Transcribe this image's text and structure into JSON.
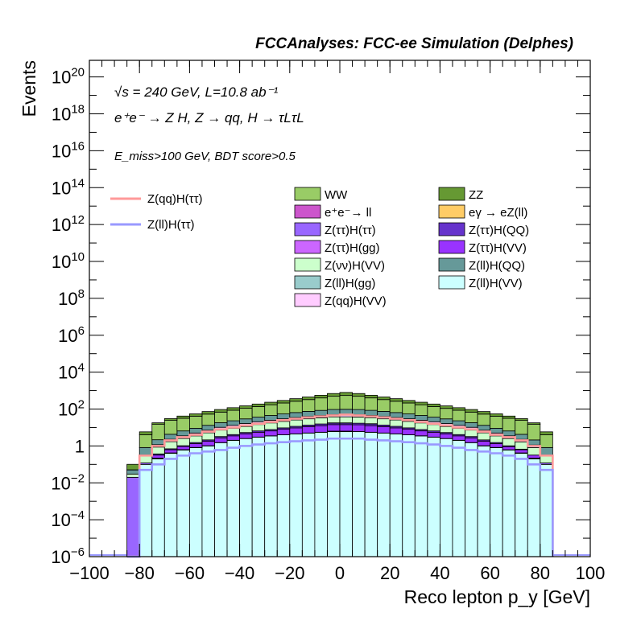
{
  "chart_data": {
    "type": "bar",
    "title": "FCCAnalyses: FCC-ee Simulation (Delphes)",
    "xlabel": "Reco lepton p_y [GeV]",
    "ylabel": "Events",
    "xlim": [
      -100,
      100
    ],
    "ylim_log10": [
      -6,
      20.9
    ],
    "yscale": "log",
    "grid": false,
    "x_ticks": [
      "−100",
      "−80",
      "−60",
      "−40",
      "−20",
      "0",
      "20",
      "40",
      "60",
      "80",
      "100"
    ],
    "annotations": [
      "√s = 240 GeV, L=10.8 ab⁻¹",
      "e⁺e⁻ → Z H, Z → qq, H → τLτL",
      "E_miss>100 GeV, BDT score>0.5"
    ],
    "bin_edges": [
      -85,
      -80,
      -75,
      -70,
      -65,
      -60,
      -55,
      -50,
      -45,
      -40,
      -35,
      -30,
      -25,
      -20,
      -15,
      -10,
      -5,
      0,
      5,
      10,
      15,
      20,
      25,
      30,
      35,
      40,
      45,
      50,
      55,
      60,
      65,
      70,
      75,
      80,
      85
    ],
    "stack_order": [
      "Z(ll)H(VV)",
      "Z(ll)H(gg)",
      "eγ → eZ(ll)",
      "Z(ττ)H(gg)",
      "Z(ττ)H(ττ)",
      "Z(ττ)H(VV)",
      "Z(ττ)H(QQ)",
      "e⁺e⁻→ ll",
      "Z(νν)H(VV)",
      "Z(qq)H(VV)",
      "Z(ll)H(QQ)",
      "WW",
      "ZZ"
    ],
    "series": [
      {
        "name": "WW",
        "color": "#99cc66",
        "values": [
          0.001,
          3.2,
          13,
          20,
          25,
          32,
          40,
          50,
          63,
          80,
          100,
          126,
          158,
          200,
          251,
          316,
          398,
          447,
          398,
          316,
          251,
          200,
          158,
          126,
          100,
          79,
          63,
          50,
          40,
          32,
          25,
          20,
          13,
          3.2
        ]
      },
      {
        "name": "ZZ",
        "color": "#669933",
        "values": [
          0.05,
          1.8,
          2.8,
          6,
          10,
          14,
          20,
          26,
          32,
          40,
          50,
          63,
          79,
          100,
          126,
          158,
          200,
          250,
          200,
          158,
          126,
          100,
          79,
          63,
          50,
          40,
          32,
          26,
          20,
          14,
          10,
          6,
          2.8,
          1.8
        ]
      },
      {
        "name": "e⁺e⁻→ ll",
        "color": "#cc55cc",
        "values": [
          0,
          0,
          0,
          0,
          0,
          0,
          0,
          0,
          0,
          0,
          0,
          0,
          0,
          0,
          0,
          0,
          0.5,
          0.5,
          0,
          0.5,
          0,
          0,
          0,
          0,
          0,
          0,
          0,
          0,
          0,
          0,
          0,
          0,
          0,
          0
        ]
      },
      {
        "name": "eγ → eZ(ll)",
        "color": "#ffcc66",
        "values": [
          0,
          0,
          0,
          0,
          0,
          0,
          0,
          0,
          0,
          0.005,
          0,
          0,
          0,
          0,
          0,
          0,
          0.3,
          0.3,
          0,
          0,
          0,
          0,
          0,
          0.005,
          0,
          0,
          0,
          0,
          0,
          0,
          0,
          0,
          0,
          0
        ]
      },
      {
        "name": "Z(ττ)H(ττ)",
        "color": "#9966ff",
        "values": [
          0.02,
          0.02,
          0.02,
          0.02,
          0.03,
          0.03,
          0.03,
          0.03,
          0.03,
          0.03,
          0.03,
          0.03,
          0.03,
          0.03,
          0.03,
          0.03,
          0.03,
          0.03,
          0.03,
          0.03,
          0.03,
          0.03,
          0.03,
          0.03,
          0.03,
          0.03,
          0.03,
          0.03,
          0.03,
          0.03,
          0.02,
          0.02,
          0.02,
          0.02
        ]
      },
      {
        "name": "Z(ττ)H(QQ)",
        "color": "#6633cc",
        "values": [
          0,
          0,
          0.05,
          0.08,
          0.1,
          0.2,
          0.3,
          0.5,
          0.6,
          0.8,
          1,
          1.2,
          1.5,
          2,
          2.5,
          3,
          3,
          3,
          3,
          3,
          2.5,
          2,
          1.5,
          1.2,
          1,
          0.8,
          0.6,
          0.5,
          0.3,
          0.2,
          0.1,
          0.05,
          0,
          0
        ]
      },
      {
        "name": "Z(ττ)H(gg)",
        "color": "#cc66ff",
        "values": [
          0,
          0,
          0,
          0,
          0,
          0,
          0,
          0.003,
          0.003,
          0.005,
          0.01,
          0.01,
          0.01,
          0.01,
          0.01,
          0.01,
          0.01,
          0.01,
          0.01,
          0.01,
          0.01,
          0.01,
          0.01,
          0.01,
          0.005,
          0.003,
          0.003,
          0,
          0,
          0,
          0,
          0,
          0,
          0
        ]
      },
      {
        "name": "Z(ττ)H(VV)",
        "color": "#9933ff",
        "values": [
          0,
          0,
          0.1,
          0.2,
          0.3,
          0.5,
          0.8,
          1.2,
          1.5,
          2,
          2.5,
          3,
          4,
          5,
          6,
          7,
          8,
          8,
          8,
          7,
          6,
          5,
          4,
          3,
          2.5,
          2,
          1.5,
          1.2,
          0.8,
          0.5,
          0.3,
          0.2,
          0.1,
          0
        ]
      },
      {
        "name": "Z(νν)H(VV)",
        "color": "#ccffcc",
        "values": [
          0.01,
          0.2,
          0.5,
          1,
          1.5,
          2,
          3,
          4,
          5,
          6,
          8,
          10,
          12,
          14,
          16,
          18,
          20,
          20,
          20,
          18,
          16,
          14,
          12,
          10,
          8,
          6,
          5,
          4,
          3,
          2,
          1.5,
          1,
          0.5,
          0.2
        ]
      },
      {
        "name": "Z(ll)H(QQ)",
        "color": "#669999",
        "values": [
          0.02,
          0.5,
          1,
          2,
          3,
          4,
          6,
          8,
          10,
          13,
          16,
          20,
          25,
          30,
          35,
          40,
          45,
          47,
          45,
          40,
          35,
          30,
          25,
          20,
          16,
          13,
          10,
          8,
          6,
          4,
          3,
          2,
          1,
          0.5
        ]
      },
      {
        "name": "Z(ll)H(gg)",
        "color": "#99cccc",
        "values": [
          0,
          0,
          0,
          0,
          0,
          0,
          0,
          0,
          0,
          0,
          0,
          0.005,
          0.005,
          0.01,
          0.01,
          0.01,
          0.01,
          0.01,
          0.01,
          0.01,
          0.01,
          0.01,
          0.005,
          0.005,
          0,
          0,
          0,
          0,
          0,
          0,
          0,
          0,
          0,
          0
        ]
      },
      {
        "name": "Z(ll)H(VV)",
        "color": "#ccffff",
        "values": [
          0,
          0.1,
          0.2,
          0.4,
          0.6,
          0.8,
          1,
          1.5,
          2,
          2.5,
          3,
          3.5,
          4,
          4.5,
          5,
          5.5,
          6,
          6,
          6,
          5.5,
          5,
          4.5,
          4,
          3.5,
          3,
          2.5,
          2,
          1.5,
          1,
          0.8,
          0.6,
          0.4,
          0.2,
          0.1
        ]
      },
      {
        "name": "Z(qq)H(VV)",
        "color": "#ffccff",
        "values": [
          1e-06,
          1e-06,
          0.3,
          0.6,
          1,
          1.5,
          2,
          3,
          4,
          5,
          6,
          7,
          8,
          9,
          10,
          11,
          12,
          12,
          12,
          11,
          10,
          9,
          8,
          7,
          6,
          5,
          4,
          3,
          2,
          1.5,
          1,
          0.6,
          0.3,
          1e-06
        ]
      }
    ],
    "signal_lines": [
      {
        "name": "Z(qq)H(ττ)",
        "color": "#ff9999",
        "values": [
          1e-07,
          0.3,
          1,
          2,
          3,
          4,
          6,
          8,
          10,
          13,
          16,
          20,
          25,
          30,
          35,
          40,
          45,
          50,
          45,
          40,
          35,
          30,
          25,
          20,
          16,
          13,
          10,
          8,
          6,
          4,
          3,
          2,
          1,
          0.3
        ]
      },
      {
        "name": "Z(ll)H(ττ)",
        "color": "#9999ff",
        "values": [
          1e-07,
          0.05,
          0.1,
          0.2,
          0.3,
          0.4,
          0.5,
          0.6,
          0.8,
          1,
          1.2,
          1.4,
          1.6,
          1.8,
          2,
          2.2,
          2.5,
          2.5,
          2.5,
          2.2,
          2,
          1.8,
          1.6,
          1.4,
          1.2,
          1,
          0.8,
          0.6,
          0.5,
          0.4,
          0.3,
          0.2,
          0.1,
          0.05
        ]
      }
    ],
    "legend_position": "top"
  }
}
